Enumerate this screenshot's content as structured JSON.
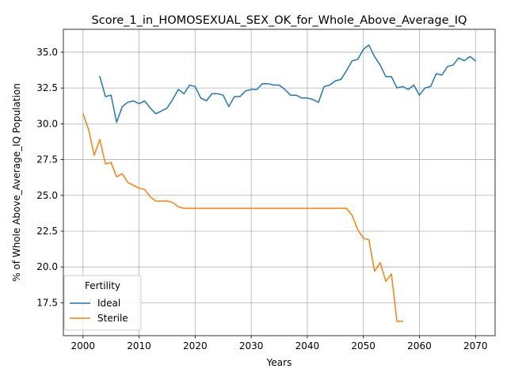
{
  "chart_data": {
    "type": "line",
    "title": "Score_1_in_HOMOSEXUAL_SEX_OK_for_Whole_Above_Average_IQ",
    "xlabel": "Years",
    "ylabel": "% of Whole Above_Average_IQ Population",
    "xlim": [
      1996.5,
      2073.5
    ],
    "ylim": [
      15.2,
      36.6
    ],
    "xticks": [
      2000,
      2010,
      2020,
      2030,
      2040,
      2050,
      2060,
      2070
    ],
    "yticks": [
      17.5,
      20.0,
      22.5,
      25.0,
      27.5,
      30.0,
      32.5,
      35.0
    ],
    "ytick_labels": [
      "17.5",
      "20.0",
      "22.5",
      "25.0",
      "27.5",
      "30.0",
      "32.5",
      "35.0"
    ],
    "grid": true,
    "legend": {
      "title": "Fertility",
      "position": "lower-left"
    },
    "colors": {
      "Ideal": "#1f77b4",
      "Sterile": "#ff7f0e"
    },
    "series": [
      {
        "name": "Ideal",
        "x": [
          2003,
          2004,
          2005,
          2006,
          2007,
          2008,
          2009,
          2010,
          2011,
          2012,
          2013,
          2014,
          2015,
          2016,
          2017,
          2018,
          2019,
          2020,
          2021,
          2022,
          2023,
          2024,
          2025,
          2026,
          2027,
          2028,
          2029,
          2030,
          2031,
          2032,
          2033,
          2034,
          2035,
          2036,
          2037,
          2038,
          2039,
          2040,
          2041,
          2042,
          2043,
          2044,
          2045,
          2046,
          2047,
          2048,
          2049,
          2050,
          2051,
          2052,
          2053,
          2054,
          2055,
          2056,
          2057,
          2058,
          2059,
          2060,
          2061,
          2062,
          2063,
          2064,
          2065,
          2066,
          2067,
          2068,
          2069,
          2070
        ],
        "values": [
          33.3,
          31.9,
          32.0,
          30.1,
          31.2,
          31.5,
          31.6,
          31.4,
          31.6,
          31.1,
          30.7,
          30.9,
          31.1,
          31.7,
          32.4,
          32.1,
          32.7,
          32.6,
          31.8,
          31.6,
          32.1,
          32.1,
          32.0,
          31.2,
          31.9,
          31.9,
          32.3,
          32.4,
          32.4,
          32.8,
          32.8,
          32.7,
          32.7,
          32.4,
          32.0,
          32.0,
          31.8,
          31.8,
          31.7,
          31.5,
          32.6,
          32.7,
          33.0,
          33.1,
          33.7,
          34.4,
          34.5,
          35.2,
          35.5,
          34.7,
          34.1,
          33.3,
          33.3,
          32.5,
          32.6,
          32.4,
          32.7,
          32.0,
          32.5,
          32.6,
          33.5,
          33.4,
          34.0,
          34.1,
          34.6,
          34.4,
          34.7,
          34.4
        ]
      },
      {
        "name": "Sterile",
        "x": [
          2000,
          2001,
          2002,
          2003,
          2004,
          2005,
          2006,
          2007,
          2008,
          2009,
          2010,
          2011,
          2012,
          2013,
          2014,
          2015,
          2016,
          2017,
          2018,
          2019,
          2020,
          2021,
          2022,
          2023,
          2024,
          2025,
          2026,
          2027,
          2028,
          2029,
          2030,
          2031,
          2032,
          2033,
          2034,
          2035,
          2036,
          2037,
          2038,
          2039,
          2040,
          2041,
          2042,
          2043,
          2044,
          2045,
          2046,
          2047,
          2048,
          2049,
          2050,
          2051,
          2052,
          2053,
          2054,
          2055,
          2056,
          2057
        ],
        "values": [
          30.7,
          29.6,
          27.8,
          28.9,
          27.2,
          27.3,
          26.3,
          26.5,
          25.9,
          25.7,
          25.5,
          25.4,
          24.9,
          24.6,
          24.6,
          24.6,
          24.5,
          24.2,
          24.1,
          24.1,
          24.1,
          24.1,
          24.1,
          24.1,
          24.1,
          24.1,
          24.1,
          24.1,
          24.1,
          24.1,
          24.1,
          24.1,
          24.1,
          24.1,
          24.1,
          24.1,
          24.1,
          24.1,
          24.1,
          24.1,
          24.1,
          24.1,
          24.1,
          24.1,
          24.1,
          24.1,
          24.1,
          24.1,
          23.6,
          22.6,
          22.0,
          21.9,
          19.7,
          20.3,
          19.0,
          19.5,
          16.2,
          16.2
        ]
      }
    ]
  }
}
